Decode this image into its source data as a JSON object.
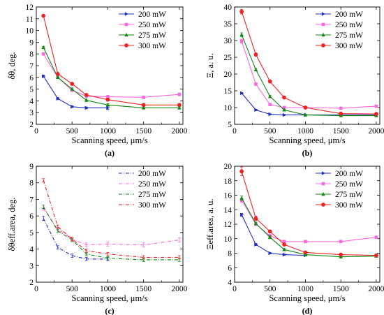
{
  "chart_data": [
    {
      "type": "line",
      "panel_label": "(a)",
      "xlabel": "Scanning speed, μm/s",
      "ylabel": "δθ, deg.",
      "x": [
        100,
        300,
        500,
        700,
        1000,
        1500,
        2000
      ],
      "xlim": [
        0,
        2050
      ],
      "ylim": [
        2,
        12
      ],
      "xticks": [
        0,
        500,
        1000,
        1500,
        2000
      ],
      "yticks": [
        2,
        3,
        4,
        5,
        6,
        7,
        8,
        9,
        10,
        11,
        12
      ],
      "grid": false,
      "legend_position": "top-right",
      "series": [
        {
          "name": "200 mW",
          "color": "#1f2fbf",
          "marker": "triangle-right",
          "values": [
            6.1,
            4.2,
            3.5,
            3.4,
            3.4,
            null,
            null
          ],
          "errors": [
            0.1,
            0.1,
            0.08,
            0.08,
            0.15,
            null,
            null
          ]
        },
        {
          "name": "250 mW",
          "color": "#ff66dd",
          "marker": "square",
          "values": [
            8.0,
            6.0,
            4.9,
            4.4,
            4.35,
            4.3,
            4.55
          ],
          "errors": [
            0.1,
            0.1,
            0.1,
            0.1,
            0.12,
            0.12,
            0.12
          ]
        },
        {
          "name": "275 mW",
          "color": "#118811",
          "marker": "triangle-up",
          "values": [
            8.55,
            6.0,
            5.0,
            4.05,
            3.65,
            3.4,
            3.4
          ],
          "errors": [
            0.1,
            0.1,
            0.1,
            0.1,
            0.1,
            0.1,
            0.1
          ]
        },
        {
          "name": "300 mW",
          "color": "#ee2222",
          "marker": "circle",
          "values": [
            11.25,
            6.3,
            5.45,
            4.5,
            4.1,
            3.65,
            3.65
          ],
          "errors": [
            0.1,
            0.1,
            0.1,
            0.1,
            0.1,
            0.1,
            0.1
          ]
        }
      ]
    },
    {
      "type": "line",
      "panel_label": "(b)",
      "xlabel": "Scanning speed, μm/s",
      "ylabel": "Ξ, a. u.",
      "x": [
        100,
        300,
        500,
        700,
        1000,
        1500,
        2000
      ],
      "xlim": [
        0,
        2050
      ],
      "ylim": [
        5,
        40
      ],
      "xticks": [
        0,
        500,
        1000,
        1500,
        2000
      ],
      "yticks": [
        5,
        10,
        15,
        20,
        25,
        30,
        35,
        40
      ],
      "grid": false,
      "legend_position": "top-right",
      "series": [
        {
          "name": "200 mW",
          "color": "#1f2fbf",
          "marker": "triangle-right",
          "values": [
            14.3,
            9.3,
            8.0,
            7.8,
            7.8,
            7.8,
            7.8
          ],
          "errors": [
            0.2,
            0.2,
            0.15,
            0.15,
            0.15,
            0.15,
            0.15
          ]
        },
        {
          "name": "250 mW",
          "color": "#ff66dd",
          "marker": "square",
          "values": [
            29.8,
            17.0,
            10.9,
            10.0,
            10.0,
            9.8,
            10.4
          ],
          "errors": [
            0.6,
            0.4,
            0.3,
            0.2,
            0.2,
            0.2,
            0.2
          ]
        },
        {
          "name": "275 mW",
          "color": "#118811",
          "marker": "triangle-up",
          "values": [
            31.7,
            21.3,
            13.3,
            9.3,
            7.8,
            7.6,
            7.6
          ],
          "errors": [
            0.6,
            0.4,
            0.3,
            0.2,
            0.2,
            0.2,
            0.2
          ]
        },
        {
          "name": "300 mW",
          "color": "#ee2222",
          "marker": "circle",
          "values": [
            38.6,
            25.8,
            17.8,
            13.0,
            10.0,
            8.2,
            8.1
          ],
          "errors": [
            0.7,
            0.5,
            0.3,
            0.2,
            0.2,
            0.2,
            0.2
          ]
        }
      ]
    },
    {
      "type": "line",
      "panel_label": "(c)",
      "xlabel": "Scanning speed, μm/s",
      "ylabel": "δθeff.area, deg.",
      "x": [
        100,
        300,
        500,
        700,
        1000,
        1500,
        2000
      ],
      "xlim": [
        0,
        2050
      ],
      "ylim": [
        2,
        9
      ],
      "xticks": [
        0,
        500,
        1000,
        1500,
        2000
      ],
      "yticks": [
        2,
        3,
        4,
        5,
        6,
        7,
        8,
        9
      ],
      "grid": false,
      "legend_position": "top-right",
      "series": [
        {
          "name": "200 mW",
          "color": "#1f2fbf",
          "marker": "none",
          "values": [
            5.85,
            4.1,
            3.6,
            3.4,
            3.4,
            null,
            null
          ],
          "errors": [
            0.12,
            0.1,
            0.1,
            0.1,
            0.1,
            null,
            null
          ]
        },
        {
          "name": "250 mW",
          "color": "#ff66dd",
          "marker": "none",
          "values": [
            6.45,
            5.2,
            4.6,
            4.25,
            4.3,
            4.25,
            4.55
          ],
          "errors": [
            0.1,
            0.1,
            0.1,
            0.12,
            0.12,
            0.12,
            0.12
          ]
        },
        {
          "name": "275 mW",
          "color": "#118811",
          "marker": "none",
          "values": [
            6.55,
            5.1,
            4.55,
            3.7,
            3.45,
            3.35,
            3.35
          ],
          "errors": [
            0.1,
            0.1,
            0.1,
            0.1,
            0.1,
            0.1,
            0.1
          ]
        },
        {
          "name": "300 mW",
          "color": "#ee2222",
          "marker": "none",
          "values": [
            8.15,
            5.35,
            4.6,
            3.9,
            3.7,
            3.5,
            3.5
          ],
          "errors": [
            0.1,
            0.1,
            0.1,
            0.1,
            0.1,
            0.1,
            0.1
          ]
        }
      ]
    },
    {
      "type": "line",
      "panel_label": "(d)",
      "xlabel": "Scanning speed, μm/s",
      "ylabel": "Ξeff.area, a. u.",
      "x": [
        100,
        300,
        500,
        700,
        1000,
        1500,
        2000
      ],
      "xlim": [
        0,
        2050
      ],
      "ylim": [
        4,
        20
      ],
      "xticks": [
        0,
        500,
        1000,
        1500,
        2000
      ],
      "yticks": [
        4,
        6,
        8,
        10,
        12,
        14,
        16,
        18,
        20
      ],
      "grid": false,
      "legend_position": "top-right",
      "series": [
        {
          "name": "200 mW",
          "color": "#1f2fbf",
          "marker": "triangle-right",
          "values": [
            13.3,
            9.2,
            8.0,
            7.8,
            7.7,
            null,
            null
          ],
          "errors": [
            0.2,
            0.15,
            0.1,
            0.1,
            0.1,
            null,
            null
          ]
        },
        {
          "name": "250 mW",
          "color": "#ff66dd",
          "marker": "square",
          "values": [
            15.3,
            12.0,
            10.4,
            9.6,
            9.6,
            9.6,
            10.2
          ],
          "errors": [
            0.3,
            0.2,
            0.2,
            0.15,
            0.15,
            0.15,
            0.15
          ]
        },
        {
          "name": "275 mW",
          "color": "#118811",
          "marker": "triangle-up",
          "values": [
            15.6,
            12.1,
            10.2,
            8.5,
            7.8,
            7.5,
            7.6
          ],
          "errors": [
            0.3,
            0.2,
            0.2,
            0.15,
            0.15,
            0.15,
            0.15
          ]
        },
        {
          "name": "300 mW",
          "color": "#ee2222",
          "marker": "circle",
          "values": [
            19.3,
            12.8,
            11.0,
            9.2,
            8.1,
            7.8,
            7.7
          ],
          "errors": [
            0.6,
            0.3,
            0.2,
            0.15,
            0.15,
            0.15,
            0.15
          ]
        }
      ]
    }
  ]
}
